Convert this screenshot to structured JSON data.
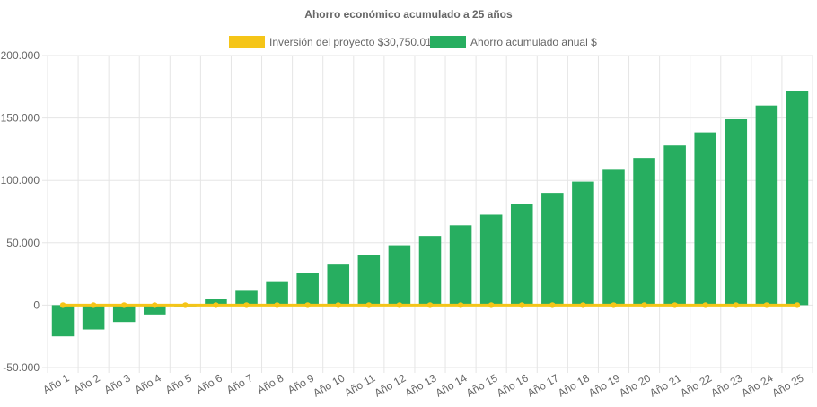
{
  "chart_data": {
    "type": "bar",
    "title": "Ahorro económico acumulado a 25 años",
    "legend_position": "top",
    "grid": true,
    "categories": [
      "Año 1",
      "Año 2",
      "Año 3",
      "Año 4",
      "Año 5",
      "Año 6",
      "Año 7",
      "Año 8",
      "Año 9",
      "Año 10",
      "Año 11",
      "Año 12",
      "Año 13",
      "Año 14",
      "Año 15",
      "Año 16",
      "Año 17",
      "Año 18",
      "Año 19",
      "Año 20",
      "Año 21",
      "Año 22",
      "Año 23",
      "Año 24",
      "Año 25"
    ],
    "ylim": [
      -50000,
      200000
    ],
    "yticks": [
      -50000,
      0,
      50000,
      100000,
      150000,
      200000
    ],
    "ytick_labels": [
      "-50.000",
      "0",
      "50.000",
      "100.000",
      "150.000",
      "200.000"
    ],
    "series": [
      {
        "name": "Inversión del proyecto $30,750.01",
        "type": "line",
        "color": "#f5c518",
        "values": [
          0,
          0,
          0,
          0,
          0,
          0,
          0,
          0,
          0,
          0,
          0,
          0,
          0,
          0,
          0,
          0,
          0,
          0,
          0,
          0,
          0,
          0,
          0,
          0,
          0
        ]
      },
      {
        "name": "Ahorro acumulado anual $",
        "type": "bar",
        "color": "#27ae60",
        "values": [
          -25000,
          -19500,
          -13500,
          -7500,
          -1000,
          5000,
          11500,
          18500,
          25500,
          32500,
          40000,
          48000,
          55500,
          64000,
          72500,
          81000,
          90000,
          99000,
          108500,
          118000,
          128000,
          138500,
          149000,
          160000,
          171500
        ]
      }
    ]
  }
}
